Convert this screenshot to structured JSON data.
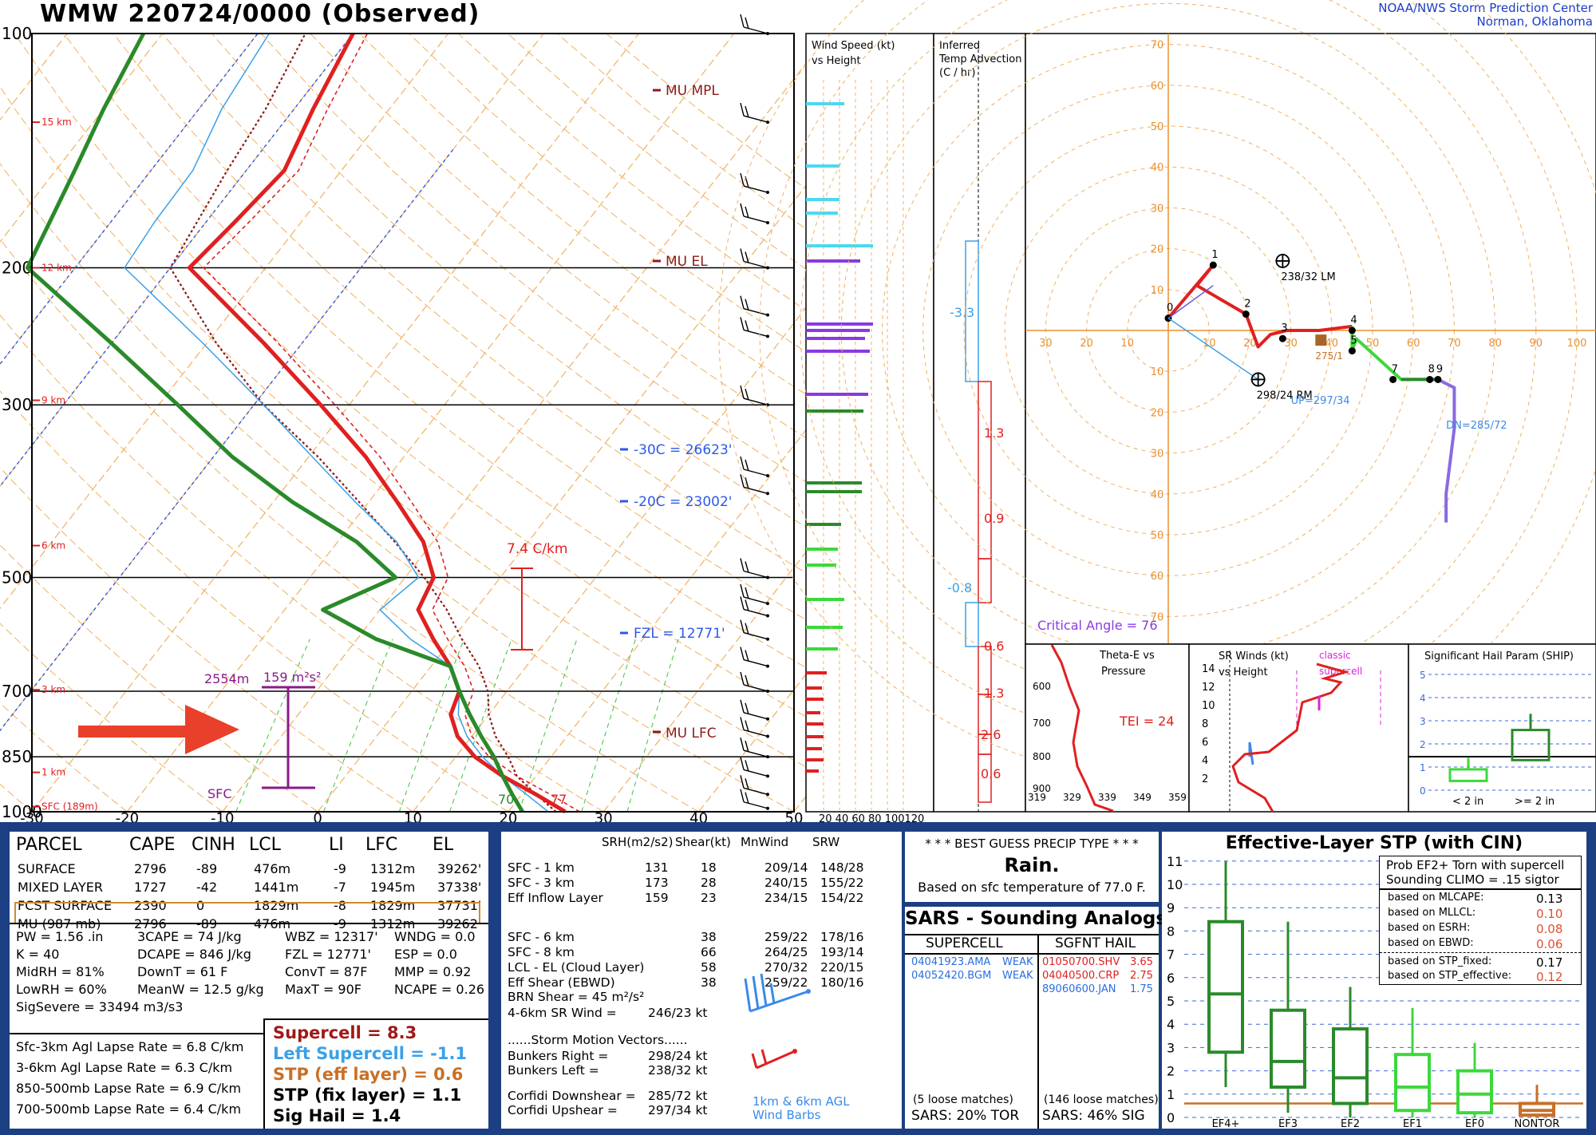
{
  "header": {
    "title": "WMW   220724/0000  (Observed)",
    "center_line1": "NOAA/NWS Storm Prediction Center",
    "center_line2": "Norman, Oklahoma"
  },
  "skewt": {
    "pressure_labels": [
      "100",
      "200",
      "300",
      "500",
      "700",
      "850",
      "1000"
    ],
    "temp_labels": [
      "-30",
      "-20",
      "-10",
      "0",
      "10",
      "20",
      "30",
      "40",
      "50"
    ],
    "height_labels": [
      "15 km",
      "12 km",
      "9 km",
      "6 km",
      "3 km",
      "1 km",
      "SFC (189m)"
    ],
    "annotations": {
      "mu_mpl": "MU MPL",
      "mu_el": "MU EL",
      "mu_lfc": "MU LFC",
      "t_minus30": "-30C = 26623'",
      "t_minus20": "-20C = 23002'",
      "fzl": "FZL = 12771'",
      "lapse": "7.4 C/km",
      "eff_base": "2554m",
      "eff_srh": "159 m²s²",
      "sfc": "SFC",
      "sfc_td": "70",
      "sfc_t": "77"
    }
  },
  "wind_height": {
    "title1": "Wind Speed (kt)",
    "title2": "vs Height",
    "axis": "20 40 60 80 100120"
  },
  "temp_adv": {
    "title1": "Inferred",
    "title2": "Temp Advection",
    "title3": "(C / hr)",
    "values": [
      "-3.3",
      "1.3",
      "0.9",
      "-0.8",
      "0.6",
      "1.3",
      "2.6",
      "0.6"
    ]
  },
  "hodograph": {
    "ring_labels": [
      "10",
      "20",
      "30",
      "40",
      "50",
      "60",
      "70"
    ],
    "x_labels": [
      "30",
      "20",
      "10",
      "10",
      "20",
      "30",
      "40",
      "50",
      "60",
      "70",
      "80",
      "90",
      "100"
    ],
    "hour_marks": [
      "0",
      "1",
      "2",
      "3",
      "4",
      "5",
      "7",
      "8",
      "9"
    ],
    "lm": "238/32 LM",
    "rm": "298/24 RM",
    "up": "UP=297/34",
    "dn": "DN=285/72",
    "mean": "275/1",
    "critical_angle": "Critical Angle = 76"
  },
  "theta_e": {
    "title1": "Theta-E vs",
    "title2": "Pressure",
    "tei": "TEI = 24",
    "p_labels": [
      "600",
      "700",
      "800",
      "900"
    ],
    "x_labels": [
      "319",
      "329",
      "339",
      "349",
      "359"
    ]
  },
  "sr_winds": {
    "title1": "SR Winds (kt)",
    "title2": "vs Height",
    "classic": "classic",
    "supercell": "supercell",
    "h_labels": [
      "14",
      "12",
      "10",
      "8",
      "6",
      "4",
      "2"
    ]
  },
  "ship": {
    "title": "Significant Hail Param (SHIP)",
    "y_labels": [
      "5",
      "4",
      "3",
      "2",
      "1",
      "0"
    ],
    "x_labels": [
      "< 2 in",
      ">= 2 in"
    ]
  },
  "parcel": {
    "headers": [
      "PARCEL",
      "CAPE",
      "CINH",
      "LCL",
      "LI",
      "LFC",
      "EL"
    ],
    "rows": [
      [
        "SURFACE",
        "2796",
        "-89",
        "476m",
        "-9",
        "1312m",
        "39262'"
      ],
      [
        "MIXED LAYER",
        "1727",
        "-42",
        "1441m",
        "-7",
        "1945m",
        "37338'"
      ],
      [
        "FCST SURFACE",
        "2390",
        "0",
        "1829m",
        "-8",
        "1829m",
        "37731'"
      ],
      [
        "MU  (987 mb)",
        "2796",
        "-89",
        "476m",
        "-9",
        "1312m",
        "39262'"
      ]
    ],
    "misc_col1": [
      "PW = 1.56 .in",
      "K = 40",
      "MidRH = 81%",
      "LowRH = 60%",
      "SigSevere = 33494 m3/s3"
    ],
    "misc_col2": [
      "3CAPE = 74 J/kg",
      "DCAPE = 846 J/kg",
      "DownT = 61 F",
      "MeanW = 12.5 g/kg"
    ],
    "misc_col3": [
      "WBZ = 12317'",
      "FZL = 12771'",
      "ConvT = 87F",
      "MaxT = 90F"
    ],
    "misc_col4": [
      "WNDG = 0.0",
      "ESP = 0.0",
      "MMP = 0.92",
      "NCAPE = 0.26"
    ],
    "lapse_rates": [
      "Sfc-3km Agl Lapse Rate =  6.8 C/km",
      "3-6km Agl Lapse Rate =  6.3 C/km",
      "850-500mb Lapse Rate =  6.9 C/km",
      "700-500mb Lapse Rate =  6.4 C/km"
    ],
    "composites": [
      {
        "text": "Supercell = 8.3",
        "color": "#a01818"
      },
      {
        "text": "Left Supercell = -1.1",
        "color": "#3aa0e8"
      },
      {
        "text": "STP (eff layer) = 0.6",
        "color": "#c87028"
      },
      {
        "text": "STP (fix layer) = 1.1",
        "color": "#000000"
      },
      {
        "text": "Sig Hail = 1.4",
        "color": "#000000"
      }
    ]
  },
  "kinematics": {
    "headers": [
      "SRH(m2/s2)",
      "Shear(kt)",
      "MnWind",
      "SRW"
    ],
    "rows": [
      [
        "SFC - 1 km",
        "131",
        "18",
        "209/14",
        "148/28"
      ],
      [
        "SFC - 3 km",
        "173",
        "28",
        "240/15",
        "155/22"
      ],
      [
        "Eff Inflow Layer",
        "159",
        "23",
        "234/15",
        "154/22"
      ],
      [
        "SFC - 6 km",
        "",
        "38",
        "259/22",
        "178/16"
      ],
      [
        "SFC - 8 km",
        "",
        "66",
        "264/25",
        "193/14"
      ],
      [
        "LCL - EL (Cloud Layer)",
        "",
        "58",
        "270/32",
        "220/15"
      ],
      [
        "Eff Shear (EBWD)",
        "",
        "38",
        "259/22",
        "180/16"
      ]
    ],
    "brn_shear": "BRN Shear =  45 m²/s²",
    "sr_wind": "4-6km SR Wind =",
    "sr_wind_val": "246/23 kt",
    "storm_motion": "......Storm Motion Vectors......",
    "bunkers_right": "Bunkers Right =",
    "bunkers_right_val": "298/24 kt",
    "bunkers_left": "Bunkers Left =",
    "bunkers_left_val": "238/32 kt",
    "corfidi_down": "Corfidi Downshear =",
    "corfidi_down_val": "285/72 kt",
    "corfidi_up": "Corfidi Upshear =",
    "corfidi_up_val": "297/34 kt",
    "barb_label1": "1km & 6km AGL",
    "barb_label2": "Wind Barbs"
  },
  "precip": {
    "title": "* * * BEST GUESS PRECIP TYPE * * *",
    "value": "Rain.",
    "basis": "Based on sfc temperature of 77.0 F."
  },
  "sars": {
    "title": "SARS - Sounding Analogs",
    "col1": "SUPERCELL",
    "col2": "SGFNT HAIL",
    "supercell": [
      {
        "id": "04041923.AMA",
        "cat": "WEAK"
      },
      {
        "id": "04052420.BGM",
        "cat": "WEAK"
      }
    ],
    "hail": [
      {
        "id": "01050700.SHV",
        "val": "3.65",
        "color": "#e02020"
      },
      {
        "id": "04040500.CRP",
        "val": "2.75",
        "color": "#e02020"
      },
      {
        "id": "89060600.JAN",
        "val": "1.75",
        "color": "#2a6ee0"
      }
    ],
    "loose1": "(5 loose matches)",
    "loose2": "(146 loose matches)",
    "pct1": "SARS:  20% TOR",
    "pct2": "SARS:  46% SIG"
  },
  "stp": {
    "title": "Effective-Layer STP (with CIN)",
    "y_labels": [
      "11",
      "10",
      "9",
      "8",
      "7",
      "6",
      "5",
      "4",
      "3",
      "2",
      "1",
      "0"
    ],
    "categories": [
      "EF4+",
      "EF3",
      "EF2",
      "EF1",
      "EF0",
      "NONTOR"
    ],
    "prob_title1": "Prob EF2+ Torn with supercell",
    "prob_title2": "Sounding CLIMO = .15 sigtor",
    "probs": [
      {
        "label": "based on MLCAPE:",
        "val": "0.13",
        "color": "#000000"
      },
      {
        "label": "based on MLLCL:",
        "val": "0.10",
        "color": "#e05030"
      },
      {
        "label": "based on ESRH:",
        "val": "0.08",
        "color": "#e05030"
      },
      {
        "label": "based on EBWD:",
        "val": "0.06",
        "color": "#e05030"
      },
      {
        "label": "based on STP_fixed:",
        "val": "0.17",
        "color": "#000000"
      },
      {
        "label": "based on STP_effective:",
        "val": "0.12",
        "color": "#e05030"
      }
    ]
  },
  "chart_data": [
    {
      "type": "line",
      "title": "",
      "xlabel": "",
      "ylabel": "",
      "xlim": [
        -30,
        50
      ],
      "ylim": [
        1000,
        100
      ],
      "log_y": true,
      "skewed": true,
      "series": [
        {
          "p": [
            1000,
            950,
            900,
            850,
            800,
            750,
            700,
            650,
            600,
            550,
            500,
            450,
            400,
            350,
            300,
            250,
            200,
            175,
            150,
            125,
            100
          ],
          "v": [
            26,
            21.5,
            16.5,
            12,
            8.5,
            6,
            5,
            2,
            -2,
            -6,
            -7,
            -11,
            -17,
            -24,
            -33,
            -44,
            -58,
            -57,
            -56,
            -58,
            -60
          ]
        },
        {
          "p": [
            1000,
            950,
            900,
            850,
            800,
            750,
            700,
            650,
            600,
            550,
            500,
            450,
            400,
            350,
            300,
            250,
            200,
            150,
            125,
            100
          ],
          "v": [
            21.5,
            19,
            16.5,
            14,
            11,
            8,
            5,
            2,
            -8,
            -16,
            -11,
            -18,
            -28,
            -38,
            -48,
            -60,
            -75,
            -78,
            -80,
            -82
          ]
        },
        {
          "p": [
            1000,
            950,
            900,
            850,
            800,
            750,
            700,
            650,
            600,
            550,
            500,
            450,
            400,
            350,
            300,
            250,
            200,
            150,
            125,
            100
          ],
          "v": [
            25,
            21.5,
            18,
            15.5,
            12.5,
            10,
            8,
            5,
            1,
            -3,
            -8,
            -14,
            -21,
            -29,
            -39,
            -49,
            -60,
            -62,
            -63,
            -65
          ]
        }
      ]
    },
    {
      "type": "line",
      "title": "",
      "xlabel": "",
      "ylabel": "",
      "xlim": [
        -35,
        100
      ],
      "ylim": [
        -70,
        70
      ],
      "series": [
        {
          "u": [
            0,
            11,
            11,
            7,
            19,
            22,
            25,
            29,
            37,
            45,
            45,
            46,
            57,
            64,
            66
          ],
          "v": [
            3,
            16,
            16,
            11,
            4,
            -4,
            -1,
            0,
            0,
            1,
            -5,
            -2,
            -12,
            -12,
            -12
          ]
        }
      ]
    },
    {
      "type": "bar",
      "title": "",
      "xlabel": "",
      "ylabel": "",
      "categories": [
        "< 2 in",
        ">= 2 in"
      ],
      "ranges": [
        [
          0.4,
          0.9
        ],
        [
          1.3,
          2.6
        ]
      ],
      "medians": [
        0.9,
        1.9
      ],
      "ylim": [
        0,
        5
      ]
    },
    {
      "type": "bar",
      "title": "",
      "xlabel": "",
      "ylabel": "",
      "categories": [
        "EF4+",
        "EF3",
        "EF2",
        "EF1",
        "EF0",
        "NONTOR"
      ],
      "box": [
        [
          1.3,
          2.8,
          5.3,
          8.4,
          11
        ],
        [
          0.2,
          1.3,
          2.4,
          4.6,
          8.4
        ],
        [
          0,
          0.6,
          1.7,
          3.8,
          5.6
        ],
        [
          0,
          0.3,
          1.3,
          2.7,
          4.7
        ],
        [
          0,
          0.2,
          1,
          2,
          3.2
        ],
        [
          0,
          0.1,
          0.3,
          0.6,
          1.4
        ]
      ],
      "ylim": [
        0,
        11.5
      ]
    }
  ]
}
